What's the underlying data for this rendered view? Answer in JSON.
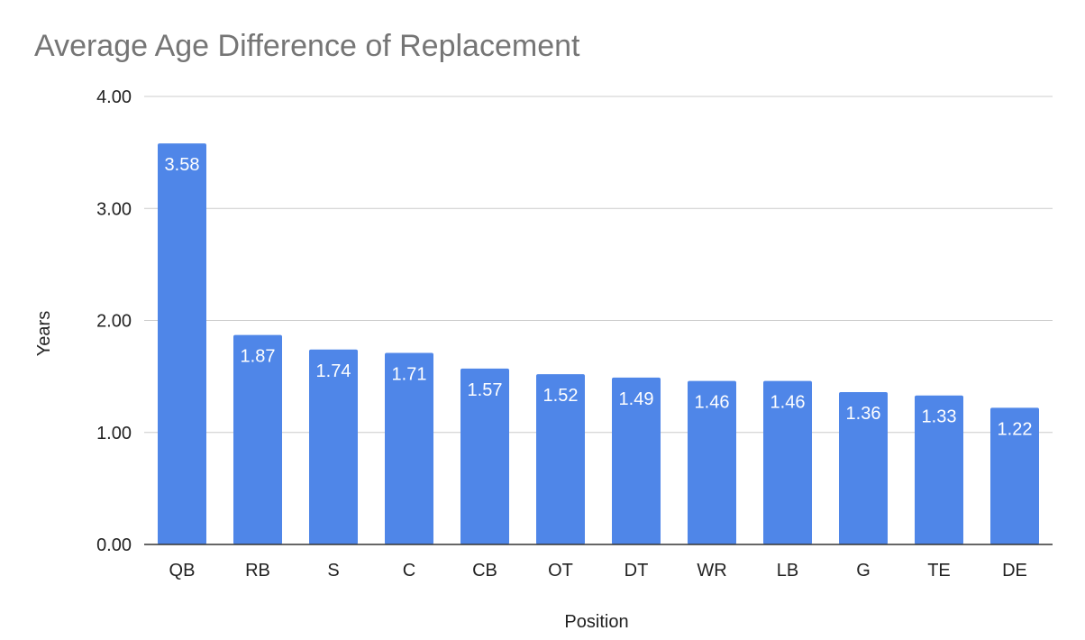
{
  "chart_data": {
    "type": "bar",
    "title": "Average Age Difference of Replacement",
    "xlabel": "Position",
    "ylabel": "Years",
    "categories": [
      "QB",
      "RB",
      "S",
      "C",
      "CB",
      "OT",
      "DT",
      "WR",
      "LB",
      "G",
      "TE",
      "DE"
    ],
    "values": [
      3.58,
      1.87,
      1.74,
      1.71,
      1.57,
      1.52,
      1.49,
      1.46,
      1.46,
      1.36,
      1.33,
      1.22
    ],
    "data_labels": [
      "3.58",
      "1.87",
      "1.74",
      "1.71",
      "1.57",
      "1.52",
      "1.49",
      "1.46",
      "1.46",
      "1.36",
      "1.33",
      "1.22"
    ],
    "ylim": [
      0,
      4
    ],
    "yticks": [
      "0.00",
      "1.00",
      "2.00",
      "3.00",
      "4.00"
    ],
    "grid": true,
    "legend": "none",
    "bar_color": "#4f86e8"
  }
}
